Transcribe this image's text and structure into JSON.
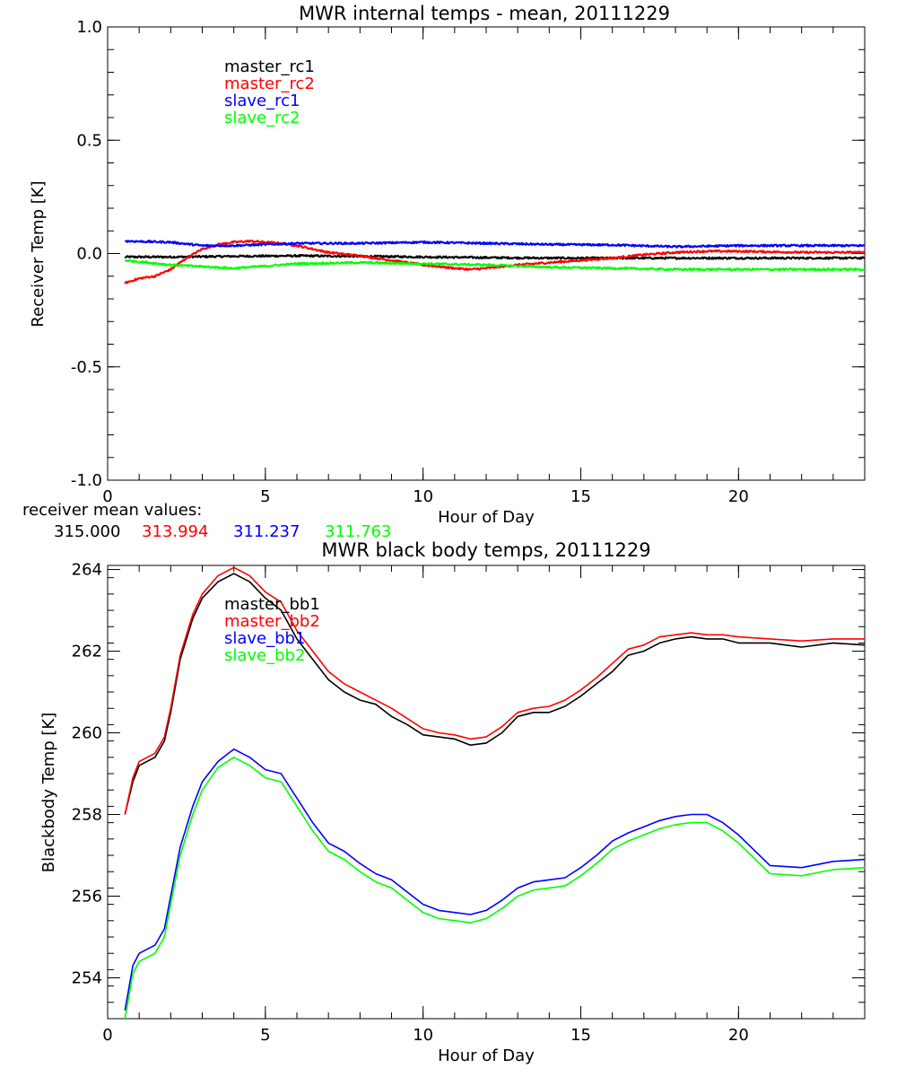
{
  "colors": {
    "black": "#000000",
    "red": "#ff0000",
    "blue": "#0000ff",
    "green": "#00ff00"
  },
  "chart_data": [
    {
      "type": "line",
      "title": "MWR internal temps - mean, 20111229",
      "xlabel": "Hour of Day",
      "ylabel": "Receiver Temp [K]",
      "xlim": [
        0,
        24
      ],
      "ylim": [
        -1.0,
        1.0
      ],
      "xticks": [
        0,
        5,
        10,
        15,
        20
      ],
      "yticks": [
        -1.0,
        -0.5,
        0.0,
        0.5,
        1.0
      ],
      "ytick_labels": [
        "-1.0",
        "-0.5",
        "0.0",
        "0.5",
        "1.0"
      ],
      "legend": "upper-left, inside",
      "note_label": "receiver mean values:",
      "note_values": [
        "315.000",
        "313.994",
        "311.237",
        "311.763"
      ],
      "series": [
        {
          "name": "master_rc1",
          "color": "#000000",
          "x": [
            0.55,
            2,
            4,
            6,
            8,
            10,
            12,
            14,
            16,
            18,
            20,
            22,
            24
          ],
          "y": [
            -0.015,
            -0.015,
            -0.012,
            -0.01,
            -0.012,
            -0.015,
            -0.018,
            -0.02,
            -0.02,
            -0.02,
            -0.02,
            -0.02,
            -0.02
          ]
        },
        {
          "name": "master_rc2",
          "color": "#ff0000",
          "x": [
            0.55,
            1.0,
            1.5,
            2.0,
            2.5,
            3.0,
            3.5,
            4.0,
            4.5,
            5.0,
            5.5,
            6.0,
            6.5,
            7.0,
            8.0,
            9.0,
            10.0,
            11.0,
            11.5,
            12.0,
            13.0,
            14.0,
            15.0,
            16.0,
            17.0,
            18.0,
            19.0,
            20.0,
            22.0,
            24.0
          ],
          "y": [
            -0.13,
            -0.11,
            -0.1,
            -0.07,
            -0.02,
            0.02,
            0.04,
            0.05,
            0.055,
            0.05,
            0.045,
            0.035,
            0.02,
            0.005,
            -0.01,
            -0.03,
            -0.05,
            -0.065,
            -0.07,
            -0.065,
            -0.05,
            -0.04,
            -0.03,
            -0.02,
            -0.005,
            0.005,
            0.01,
            0.01,
            0.005,
            0.005
          ]
        },
        {
          "name": "slave_rc1",
          "color": "#0000ff",
          "x": [
            0.55,
            2,
            3,
            4,
            6,
            8,
            10,
            12,
            14,
            16,
            18,
            20,
            22,
            24
          ],
          "y": [
            0.055,
            0.05,
            0.035,
            0.035,
            0.045,
            0.045,
            0.05,
            0.045,
            0.04,
            0.038,
            0.03,
            0.035,
            0.035,
            0.035
          ]
        },
        {
          "name": "slave_rc2",
          "color": "#00ff00",
          "x": [
            0.55,
            2,
            4,
            6,
            8,
            10,
            12,
            14,
            16,
            18,
            20,
            22,
            24
          ],
          "y": [
            -0.03,
            -0.05,
            -0.065,
            -0.045,
            -0.04,
            -0.045,
            -0.05,
            -0.06,
            -0.065,
            -0.07,
            -0.07,
            -0.07,
            -0.07
          ]
        }
      ]
    },
    {
      "type": "line",
      "title": "MWR black body temps, 20111229",
      "xlabel": "Hour of Day",
      "ylabel": "Blackbody Temp [K]",
      "xlim": [
        0,
        24
      ],
      "ylim": [
        253,
        264.1
      ],
      "xticks": [
        0,
        5,
        10,
        15,
        20
      ],
      "yticks": [
        254,
        256,
        258,
        260,
        262,
        264
      ],
      "ytick_labels": [
        "254",
        "256",
        "258",
        "260",
        "262",
        "264"
      ],
      "legend": "upper-left, inside",
      "series": [
        {
          "name": "master_bb1",
          "color": "#000000",
          "x": [
            0.55,
            0.8,
            1.0,
            1.5,
            1.8,
            2.0,
            2.3,
            2.7,
            3.0,
            3.5,
            4.0,
            4.5,
            5.0,
            5.5,
            6.0,
            6.5,
            7.0,
            7.5,
            8.0,
            8.5,
            9.0,
            9.5,
            10.0,
            10.5,
            11.0,
            11.5,
            12.0,
            12.5,
            13.0,
            13.5,
            14.0,
            14.5,
            15.0,
            15.5,
            16.0,
            16.5,
            17.0,
            17.5,
            18.0,
            18.5,
            19.0,
            19.5,
            20.0,
            21.0,
            22.0,
            23.0,
            24.0
          ],
          "y": [
            258.0,
            258.8,
            259.2,
            259.4,
            259.8,
            260.5,
            261.8,
            262.8,
            263.3,
            263.7,
            263.9,
            263.7,
            263.3,
            263.0,
            262.3,
            261.8,
            261.3,
            261.0,
            260.8,
            260.7,
            260.4,
            260.2,
            259.95,
            259.9,
            259.85,
            259.7,
            259.75,
            260.0,
            260.4,
            260.5,
            260.5,
            260.65,
            260.9,
            261.2,
            261.5,
            261.9,
            262.0,
            262.2,
            262.3,
            262.35,
            262.3,
            262.3,
            262.2,
            262.2,
            262.1,
            262.2,
            262.15
          ]
        },
        {
          "name": "master_bb2",
          "color": "#ff0000",
          "x": [
            0.55,
            0.8,
            1.0,
            1.5,
            1.8,
            2.0,
            2.3,
            2.7,
            3.0,
            3.5,
            4.0,
            4.5,
            5.0,
            5.5,
            6.0,
            6.5,
            7.0,
            7.5,
            8.0,
            8.5,
            9.0,
            9.5,
            10.0,
            10.5,
            11.0,
            11.5,
            12.0,
            12.5,
            13.0,
            13.5,
            14.0,
            14.5,
            15.0,
            15.5,
            16.0,
            16.5,
            17.0,
            17.5,
            18.0,
            18.5,
            19.0,
            19.5,
            20.0,
            21.0,
            22.0,
            23.0,
            24.0
          ],
          "y": [
            258.0,
            258.9,
            259.3,
            259.5,
            259.9,
            260.6,
            261.9,
            262.9,
            263.4,
            263.85,
            264.05,
            263.85,
            263.45,
            263.2,
            262.5,
            262.0,
            261.5,
            261.2,
            261.0,
            260.8,
            260.6,
            260.35,
            260.1,
            260.0,
            259.95,
            259.85,
            259.9,
            260.15,
            260.5,
            260.6,
            260.65,
            260.8,
            261.05,
            261.35,
            261.7,
            262.05,
            262.15,
            262.35,
            262.4,
            262.45,
            262.4,
            262.4,
            262.35,
            262.3,
            262.25,
            262.3,
            262.3
          ]
        },
        {
          "name": "slave_bb1",
          "color": "#0000ff",
          "x": [
            0.55,
            0.8,
            1.0,
            1.5,
            1.8,
            2.0,
            2.3,
            2.7,
            3.0,
            3.5,
            4.0,
            4.5,
            5.0,
            5.5,
            6.0,
            6.5,
            7.0,
            7.5,
            8.0,
            8.5,
            9.0,
            9.5,
            10.0,
            10.5,
            11.0,
            11.5,
            12.0,
            12.5,
            13.0,
            13.5,
            14.0,
            14.5,
            15.0,
            15.5,
            16.0,
            16.5,
            17.0,
            17.5,
            18.0,
            18.5,
            19.0,
            19.5,
            20.0,
            21.0,
            22.0,
            23.0,
            24.0
          ],
          "y": [
            253.2,
            254.3,
            254.6,
            254.8,
            255.2,
            256.0,
            257.2,
            258.2,
            258.8,
            259.3,
            259.6,
            259.4,
            259.1,
            259.0,
            258.4,
            257.8,
            257.3,
            257.1,
            256.8,
            256.55,
            256.4,
            256.1,
            255.8,
            255.65,
            255.6,
            255.55,
            255.65,
            255.9,
            256.2,
            256.35,
            256.4,
            256.45,
            256.7,
            257.0,
            257.35,
            257.55,
            257.7,
            257.85,
            257.95,
            258.0,
            258.0,
            257.8,
            257.5,
            256.75,
            256.7,
            256.85,
            256.9
          ]
        },
        {
          "name": "slave_bb2",
          "color": "#00ff00",
          "x": [
            0.55,
            0.8,
            1.0,
            1.5,
            1.8,
            2.0,
            2.3,
            2.7,
            3.0,
            3.5,
            4.0,
            4.5,
            5.0,
            5.5,
            6.0,
            6.5,
            7.0,
            7.5,
            8.0,
            8.5,
            9.0,
            9.5,
            10.0,
            10.5,
            11.0,
            11.5,
            12.0,
            12.5,
            13.0,
            13.5,
            14.0,
            14.5,
            15.0,
            15.5,
            16.0,
            16.5,
            17.0,
            17.5,
            18.0,
            18.5,
            19.0,
            19.5,
            20.0,
            21.0,
            22.0,
            23.0,
            24.0
          ],
          "y": [
            253.0,
            254.1,
            254.4,
            254.6,
            255.0,
            255.8,
            257.0,
            258.0,
            258.6,
            259.15,
            259.4,
            259.2,
            258.9,
            258.8,
            258.2,
            257.6,
            257.1,
            256.9,
            256.6,
            256.35,
            256.2,
            255.9,
            255.6,
            255.45,
            255.4,
            255.35,
            255.45,
            255.7,
            256.0,
            256.15,
            256.2,
            256.25,
            256.5,
            256.8,
            257.15,
            257.35,
            257.5,
            257.65,
            257.75,
            257.8,
            257.8,
            257.6,
            257.3,
            256.55,
            256.5,
            256.65,
            256.7
          ]
        }
      ]
    }
  ]
}
